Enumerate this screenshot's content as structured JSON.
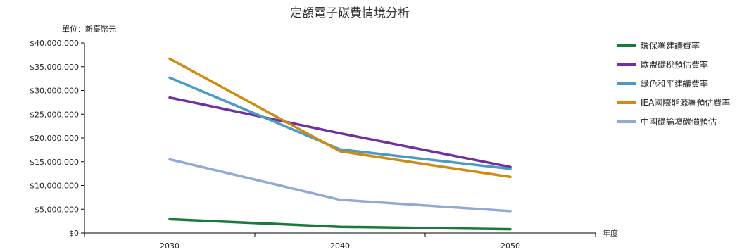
{
  "chart_data": {
    "type": "line",
    "title": "定額電子碳費情境分析",
    "unit_label": "單位：新臺幣元",
    "xlabel": "年度",
    "ylabel": "",
    "categories": [
      "2030",
      "2040",
      "2050"
    ],
    "ylim": [
      0,
      40000000
    ],
    "yticks": [
      0,
      5000000,
      10000000,
      15000000,
      20000000,
      25000000,
      30000000,
      35000000,
      40000000
    ],
    "ytick_labels": [
      "$0",
      "$5,000,000",
      "$10,000,000",
      "$15,000,000",
      "$20,000,000",
      "$25,000,000",
      "$30,000,000",
      "$35,000,000",
      "$40,000,000"
    ],
    "grid": false,
    "legend_position": "right",
    "series": [
      {
        "name": "環保署建議費率",
        "color": "#1a7a3a",
        "values": [
          2900000,
          1300000,
          800000
        ]
      },
      {
        "name": "歐盟碳稅預估費率",
        "color": "#7030a0",
        "values": [
          28500000,
          21000000,
          13900000
        ]
      },
      {
        "name": "綠色和平建議費率",
        "color": "#4a9bc4",
        "values": [
          32700000,
          17600000,
          13500000
        ]
      },
      {
        "name": "IEA國際能源署預估費率",
        "color": "#d08a10",
        "values": [
          36700000,
          17200000,
          11800000
        ]
      },
      {
        "name": "中國碳論壇碳價預估",
        "color": "#92a8d8",
        "values": [
          15500000,
          7000000,
          4600000
        ]
      }
    ]
  }
}
